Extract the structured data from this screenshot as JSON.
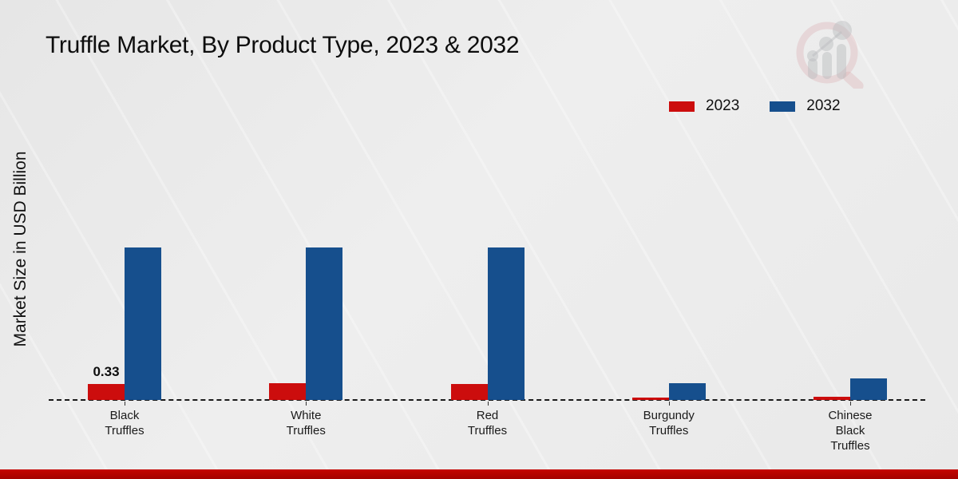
{
  "title": "Truffle Market, By Product Type, 2023 & 2032",
  "ylabel": "Market Size in USD Billion",
  "legend": {
    "items": [
      {
        "label": "2023",
        "color": "#cc0d0d"
      },
      {
        "label": "2032",
        "color": "#164f8d"
      }
    ]
  },
  "logo": {
    "name": "market-research-future-watermark"
  },
  "footer": {
    "bar_color": "#b80400"
  },
  "chart_data": {
    "type": "bar",
    "title": "Truffle Market, By Product Type, 2023 & 2032",
    "xlabel": "",
    "ylabel": "Market Size in USD Billion",
    "categories": [
      "Black Truffles",
      "White Truffles",
      "Red Truffles",
      "Burgundy Truffles",
      "Chinese Black Truffles"
    ],
    "series": [
      {
        "name": "2023",
        "color": "#cc0d0d",
        "values": [
          0.33,
          0.35,
          0.33,
          0.05,
          0.06
        ]
      },
      {
        "name": "2032",
        "color": "#164f8d",
        "values": [
          3.2,
          3.2,
          3.2,
          0.36,
          0.46
        ]
      }
    ],
    "annotations": [
      {
        "category_index": 0,
        "series": "2023",
        "text": "0.33"
      }
    ],
    "ylim": [
      0,
      3.5
    ],
    "grid": false,
    "axis_line_style": "dashed",
    "legend_position": "top-right"
  }
}
